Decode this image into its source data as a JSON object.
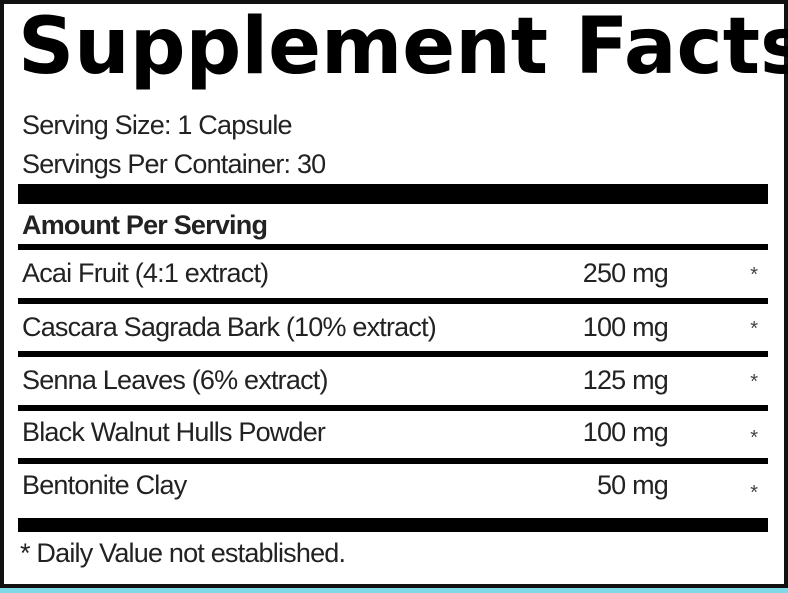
{
  "title": "Supplement Facts",
  "serving_size": "Serving Size: 1 Capsule",
  "servings_per_container": "Servings Per Container: 30",
  "amount_header": "Amount Per Serving",
  "ingredients": [
    {
      "name": "Acai Fruit (4:1 extract)",
      "amount": "250 mg",
      "dv": "*"
    },
    {
      "name": "Cascara Sagrada Bark (10% extract)",
      "amount": "100 mg",
      "dv": "*"
    },
    {
      "name": "Senna Leaves (6% extract)",
      "amount": "125 mg",
      "dv": "*"
    },
    {
      "name": "Black Walnut Hulls Powder",
      "amount": "100 mg",
      "dv": "*"
    },
    {
      "name": "Bentonite Clay",
      "amount": "50 mg",
      "dv": "*"
    }
  ],
  "footnote": "* Daily Value not established."
}
